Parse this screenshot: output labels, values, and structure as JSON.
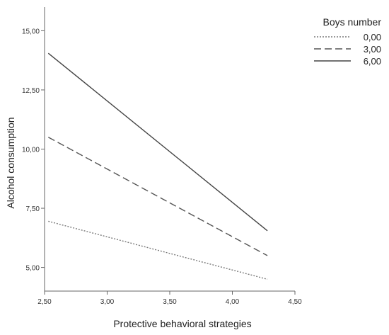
{
  "chart_data": {
    "type": "line",
    "xlabel": "Protective behavioral strategies",
    "ylabel": "Alcohol consumption",
    "xlim": [
      2.5,
      4.5
    ],
    "ylim": [
      4.0,
      16.0
    ],
    "x_ticks": [
      2.5,
      3.0,
      3.5,
      4.0,
      4.5
    ],
    "x_tick_labels": [
      "2,50",
      "3,00",
      "3,50",
      "4,00",
      "4,50"
    ],
    "y_ticks": [
      5.0,
      7.5,
      10.0,
      12.5,
      15.0
    ],
    "y_tick_labels": [
      "5,00",
      "7,50",
      "10,00",
      "12,50",
      "15,00"
    ],
    "grid": false,
    "legend": {
      "title": "Boys number",
      "placement": "top-right"
    },
    "series": [
      {
        "name": "0,00",
        "style": "dotted",
        "color": "#7a7a7a",
        "x": [
          2.53,
          4.28
        ],
        "y": [
          6.95,
          4.5
        ]
      },
      {
        "name": "3,00",
        "style": "dashed",
        "color": "#555555",
        "x": [
          2.53,
          4.28
        ],
        "y": [
          10.5,
          5.5
        ]
      },
      {
        "name": "6,00",
        "style": "solid",
        "color": "#444444",
        "x": [
          2.53,
          4.28
        ],
        "y": [
          14.05,
          6.55
        ]
      }
    ]
  }
}
